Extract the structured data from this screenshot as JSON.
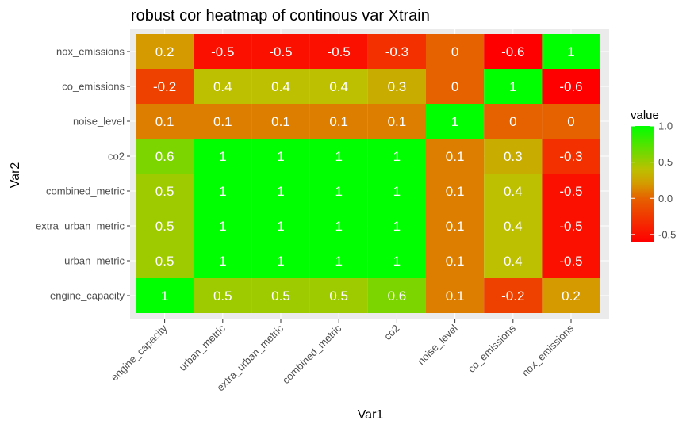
{
  "chart_data": {
    "type": "heatmap",
    "title": "robust cor heatmap of continous var Xtrain",
    "xlabel": "Var1",
    "ylabel": "Var2",
    "x_categories": [
      "engine_capacity",
      "urban_metric",
      "extra_urban_metric",
      "combined_metric",
      "co2",
      "noise_level",
      "co_emissions",
      "nox_emissions"
    ],
    "y_categories": [
      "engine_capacity",
      "urban_metric",
      "extra_urban_metric",
      "combined_metric",
      "co2",
      "noise_level",
      "co_emissions",
      "nox_emissions"
    ],
    "values": [
      [
        1,
        0.5,
        0.5,
        0.5,
        0.6,
        0.1,
        -0.2,
        0.2
      ],
      [
        0.5,
        1,
        1,
        1,
        1,
        0.1,
        0.4,
        -0.5
      ],
      [
        0.5,
        1,
        1,
        1,
        1,
        0.1,
        0.4,
        -0.5
      ],
      [
        0.5,
        1,
        1,
        1,
        1,
        0.1,
        0.4,
        -0.5
      ],
      [
        0.6,
        1,
        1,
        1,
        1,
        0.1,
        0.3,
        -0.3
      ],
      [
        0.1,
        0.1,
        0.1,
        0.1,
        0.1,
        1,
        0,
        0
      ],
      [
        -0.2,
        0.4,
        0.4,
        0.4,
        0.3,
        0,
        1,
        -0.6
      ],
      [
        0.2,
        -0.5,
        -0.5,
        -0.5,
        -0.3,
        0,
        -0.6,
        1
      ]
    ],
    "values_layout": "values[row][col]; row = y category index (bottom to top), col = x category index",
    "legend": {
      "title": "value",
      "ticks": [
        "1.0",
        "0.5",
        "0.0",
        "-0.5"
      ],
      "tick_values": [
        1.0,
        0.5,
        0.0,
        -0.5
      ],
      "range": [
        -0.6,
        1.0
      ],
      "low_color": "#ff0000",
      "high_color": "#00ff00"
    },
    "panel_background": "#ebebeb",
    "grid": true
  }
}
